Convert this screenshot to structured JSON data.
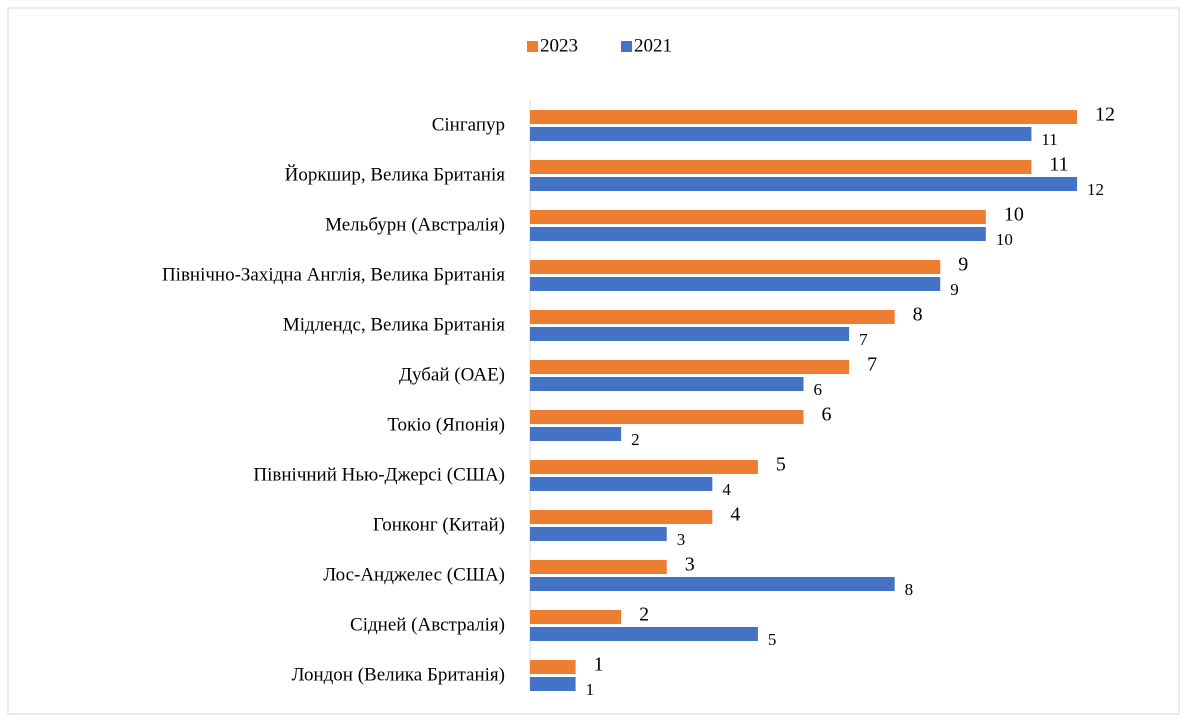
{
  "chart_data": {
    "type": "hbar",
    "categories": [
      "Сінгапур",
      "Йоркшир, Велика Британія",
      "Мельбурн (Австралія)",
      "Північно-Західна Англія, Велика Британія",
      "Мідлендс, Велика Британія",
      "Дубай (ОАЕ)",
      "Токіо (Японія)",
      "Північний Нью-Джерсі (США)",
      "Гонконг (Китай)",
      "Лос-Анджелес (США)",
      "Сідней (Австралія)",
      "Лондон (Велика Британія)"
    ],
    "series": [
      {
        "name": "2023",
        "color": "#ed7d31",
        "values": [
          12,
          11,
          10,
          9,
          8,
          7,
          6,
          5,
          4,
          3,
          2,
          1
        ]
      },
      {
        "name": "2021",
        "color": "#4472c4",
        "values": [
          11,
          12,
          10,
          9,
          7,
          6,
          2,
          4,
          3,
          8,
          5,
          1
        ]
      }
    ],
    "legend": "top"
  }
}
